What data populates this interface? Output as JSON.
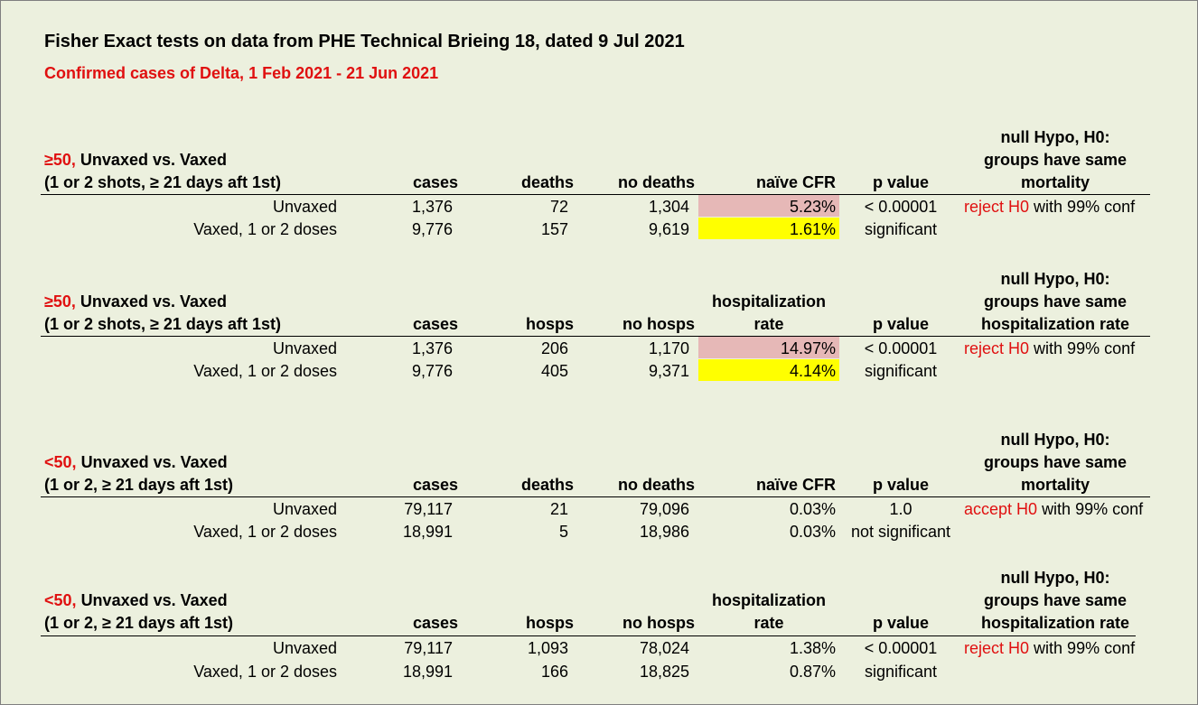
{
  "title": "Fisher Exact tests on data from PHE Technical Brieing 18, dated 9 Jul 2021",
  "subtitle": "Confirmed cases of Delta, 1 Feb 2021 - 21 Jun 2021",
  "colors": {
    "red_text": "#e01010",
    "pink_highlight": "#e6b8b7",
    "yellow_highlight": "#ffff00",
    "background": "#ecf0de"
  },
  "blocks": [
    {
      "age": "≥50,",
      "heading": "Unvaxed vs. Vaxed",
      "subheading": "(1 or 2 shots, ≥ 21 days aft 1st)",
      "col_cases": "cases",
      "col_events": "deaths",
      "col_no_events": "no deaths",
      "col_rate_line1": "",
      "col_rate_line2": "naïve CFR",
      "col_p": "p value",
      "null_line1": "null Hypo, H0:",
      "null_line2": "groups have same",
      "null_line3": "mortality",
      "rows": [
        {
          "group": "Unvaxed",
          "cases": "1,376",
          "events": "72",
          "no_events": "1,304",
          "rate": "5.23%",
          "p": "< 0.00001"
        },
        {
          "group": "Vaxed, 1 or 2 doses",
          "cases": "9,776",
          "events": "157",
          "no_events": "9,619",
          "rate": "1.61%",
          "p": "significant"
        }
      ],
      "decision": "reject H0",
      "decision_suffix": "with 99% conf"
    },
    {
      "age": "≥50,",
      "heading": "Unvaxed vs. Vaxed",
      "subheading": "(1 or 2 shots, ≥ 21 days aft 1st)",
      "col_cases": "cases",
      "col_events": "hosps",
      "col_no_events": "no hosps",
      "col_rate_line1": "hospitalization",
      "col_rate_line2": "rate",
      "col_p": "p value",
      "null_line1": "null Hypo, H0:",
      "null_line2": "groups have same",
      "null_line3": "hospitalization rate",
      "rows": [
        {
          "group": "Unvaxed",
          "cases": "1,376",
          "events": "206",
          "no_events": "1,170",
          "rate": "14.97%",
          "p": "< 0.00001"
        },
        {
          "group": "Vaxed, 1 or 2 doses",
          "cases": "9,776",
          "events": "405",
          "no_events": "9,371",
          "rate": "4.14%",
          "p": "significant"
        }
      ],
      "decision": "reject H0",
      "decision_suffix": "with 99% conf"
    },
    {
      "age": "<50,",
      "heading": "Unvaxed vs. Vaxed",
      "subheading": "(1 or 2, ≥ 21 days aft 1st)",
      "col_cases": "cases",
      "col_events": "deaths",
      "col_no_events": "no deaths",
      "col_rate_line1": "",
      "col_rate_line2": "naïve CFR",
      "col_p": "p value",
      "null_line1": "null Hypo, H0:",
      "null_line2": "groups have same",
      "null_line3": "mortality",
      "rows": [
        {
          "group": "Unvaxed",
          "cases": "79,117",
          "events": "21",
          "no_events": "79,096",
          "rate": "0.03%",
          "p": "1.0"
        },
        {
          "group": "Vaxed, 1 or 2 doses",
          "cases": "18,991",
          "events": "5",
          "no_events": "18,986",
          "rate": "0.03%",
          "p": "not significant"
        }
      ],
      "decision": "accept H0",
      "decision_suffix": "with 99% conf"
    },
    {
      "age": "<50,",
      "heading": "Unvaxed vs. Vaxed",
      "subheading": "(1 or 2, ≥ 21 days aft 1st)",
      "col_cases": "cases",
      "col_events": "hosps",
      "col_no_events": "no hosps",
      "col_rate_line1": "hospitalization",
      "col_rate_line2": "rate",
      "col_p": "p value",
      "null_line1": "null Hypo, H0:",
      "null_line2": "groups have same",
      "null_line3": "hospitalization rate",
      "rows": [
        {
          "group": "Unvaxed",
          "cases": "79,117",
          "events": "1,093",
          "no_events": "78,024",
          "rate": "1.38%",
          "p": "< 0.00001"
        },
        {
          "group": "Vaxed, 1 or 2 doses",
          "cases": "18,991",
          "events": "166",
          "no_events": "18,825",
          "rate": "0.87%",
          "p": "significant"
        }
      ],
      "decision": "reject H0",
      "decision_suffix": "with 99% conf"
    }
  ]
}
